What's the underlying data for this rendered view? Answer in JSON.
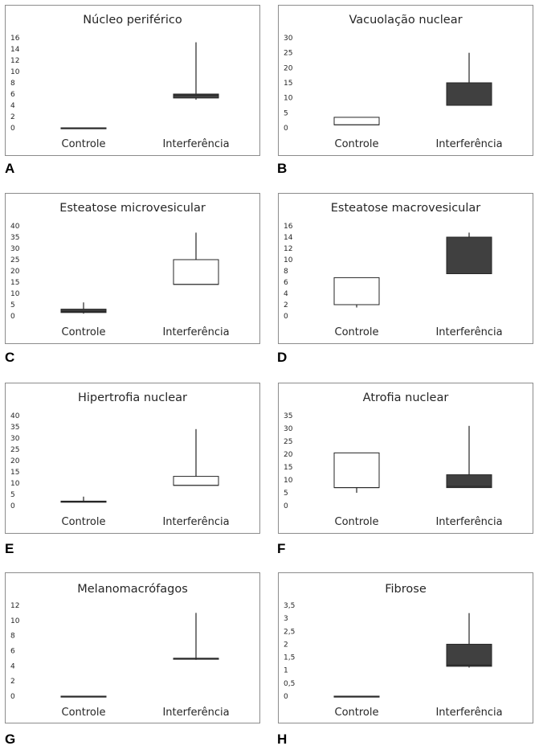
{
  "panels": [
    {
      "letter": "A",
      "chart_data": {
        "type": "boxplot",
        "title": "Núcleo periférico",
        "categories": [
          "Controle",
          "Interferência"
        ],
        "yticks": [
          "0",
          "2",
          "4",
          "6",
          "8",
          "10",
          "12",
          "14",
          "16"
        ],
        "ylim": [
          0,
          16
        ],
        "boxes": [
          {
            "category": "Controle",
            "min": 0,
            "q1": 0,
            "median": 0,
            "q3": 0,
            "max": 0,
            "fill": "#404040"
          },
          {
            "category": "Interferência",
            "min": 5,
            "q1": 5.3,
            "median": 5.8,
            "q3": 6,
            "max": 15.2,
            "fill": "#404040"
          }
        ]
      }
    },
    {
      "letter": "B",
      "chart_data": {
        "type": "boxplot",
        "title": "Vacuolação nuclear",
        "categories": [
          "Controle",
          "Interferência"
        ],
        "yticks": [
          "0",
          "5",
          "10",
          "15",
          "20",
          "25",
          "30"
        ],
        "ylim": [
          0,
          30
        ],
        "boxes": [
          {
            "category": "Controle",
            "min": 1,
            "q1": 1,
            "median": 1,
            "q3": 3.5,
            "max": 3.5,
            "fill": "#ffffff"
          },
          {
            "category": "Interferência",
            "min": 7.5,
            "q1": 7.5,
            "median": 7.5,
            "q3": 15,
            "max": 25,
            "fill": "#404040"
          }
        ]
      }
    },
    {
      "letter": "C",
      "chart_data": {
        "type": "boxplot",
        "title": "Esteatose microvesicular",
        "categories": [
          "Controle",
          "Interferência"
        ],
        "yticks": [
          "0",
          "5",
          "10",
          "15",
          "20",
          "25",
          "30",
          "35",
          "40"
        ],
        "ylim": [
          0,
          40
        ],
        "boxes": [
          {
            "category": "Controle",
            "min": 1,
            "q1": 1.5,
            "median": 2,
            "q3": 3,
            "max": 6,
            "fill": "#404040"
          },
          {
            "category": "Interferência",
            "min": 14,
            "q1": 14,
            "median": 14,
            "q3": 25,
            "max": 37,
            "fill": "#ffffff"
          }
        ]
      }
    },
    {
      "letter": "D",
      "chart_data": {
        "type": "boxplot",
        "title": "Esteatose macrovesicular",
        "categories": [
          "Controle",
          "Interferência"
        ],
        "yticks": [
          "0",
          "2",
          "4",
          "6",
          "8",
          "10",
          "12",
          "14",
          "16"
        ],
        "ylim": [
          0,
          16
        ],
        "boxes": [
          {
            "category": "Controle",
            "min": 1.5,
            "q1": 2,
            "median": 2,
            "q3": 6.8,
            "max": 6.8,
            "fill": "#ffffff"
          },
          {
            "category": "Interferência",
            "min": 7.5,
            "q1": 7.5,
            "median": 7.5,
            "q3": 14,
            "max": 14.8,
            "fill": "#404040"
          }
        ]
      }
    },
    {
      "letter": "E",
      "chart_data": {
        "type": "boxplot",
        "title": "Hipertrofia nuclear",
        "categories": [
          "Controle",
          "Interferência"
        ],
        "yticks": [
          "0",
          "5",
          "10",
          "15",
          "20",
          "25",
          "30",
          "35",
          "40"
        ],
        "ylim": [
          0,
          40
        ],
        "boxes": [
          {
            "category": "Controle",
            "min": 1.5,
            "q1": 1.5,
            "median": 1.8,
            "q3": 2,
            "max": 4,
            "fill": "#404040"
          },
          {
            "category": "Interferência",
            "min": 9,
            "q1": 9,
            "median": 9,
            "q3": 13,
            "max": 34,
            "fill": "#ffffff"
          }
        ]
      }
    },
    {
      "letter": "F",
      "chart_data": {
        "type": "boxplot",
        "title": "Atrofia nuclear",
        "categories": [
          "Controle",
          "Interferência"
        ],
        "yticks": [
          "0",
          "5",
          "10",
          "15",
          "20",
          "25",
          "30",
          "35"
        ],
        "ylim": [
          0,
          35
        ],
        "boxes": [
          {
            "category": "Controle",
            "min": 5,
            "q1": 7,
            "median": 7,
            "q3": 20.5,
            "max": 20.5,
            "fill": "#ffffff"
          },
          {
            "category": "Interferência",
            "min": 7,
            "q1": 7,
            "median": 7.5,
            "q3": 12,
            "max": 31,
            "fill": "#404040"
          }
        ]
      }
    },
    {
      "letter": "G",
      "chart_data": {
        "type": "boxplot",
        "title": "Melanomacrófagos",
        "categories": [
          "Controle",
          "Interferência"
        ],
        "yticks": [
          "0",
          "2",
          "4",
          "6",
          "8",
          "10",
          "12"
        ],
        "ylim": [
          0,
          12
        ],
        "boxes": [
          {
            "category": "Controle",
            "min": 0,
            "q1": 0,
            "median": 0,
            "q3": 0,
            "max": 0,
            "fill": "#404040"
          },
          {
            "category": "Interferência",
            "min": 4.8,
            "q1": 4.9,
            "median": 5,
            "q3": 5,
            "max": 11,
            "fill": "#404040"
          }
        ]
      }
    },
    {
      "letter": "H",
      "chart_data": {
        "type": "boxplot",
        "title": "Fibrose",
        "categories": [
          "Controle",
          "Interferência"
        ],
        "yticks": [
          "0",
          "0,5",
          "1",
          "1,5",
          "2",
          "2,5",
          "3",
          "3,5"
        ],
        "ylim": [
          0,
          3.5
        ],
        "boxes": [
          {
            "category": "Controle",
            "min": 0,
            "q1": 0,
            "median": 0,
            "q3": 0,
            "max": 0,
            "fill": "#404040"
          },
          {
            "category": "Interferência",
            "min": 1.1,
            "q1": 1.15,
            "median": 1.2,
            "q3": 2,
            "max": 3.2,
            "fill": "#404040"
          }
        ]
      }
    }
  ]
}
